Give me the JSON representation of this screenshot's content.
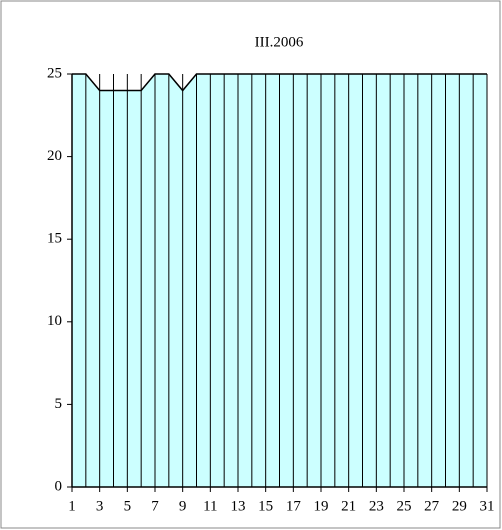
{
  "chart_data": {
    "type": "area",
    "title": "III.2006",
    "x": [
      1,
      2,
      3,
      4,
      5,
      6,
      7,
      8,
      9,
      10,
      11,
      12,
      13,
      14,
      15,
      16,
      17,
      18,
      19,
      20,
      21,
      22,
      23,
      24,
      25,
      26,
      27,
      28,
      29,
      30,
      31
    ],
    "values": [
      25,
      25,
      24,
      24,
      24,
      24,
      25,
      25,
      24,
      25,
      25,
      25,
      25,
      25,
      25,
      25,
      25,
      25,
      25,
      25,
      25,
      25,
      25,
      25,
      25,
      25,
      25,
      25,
      25,
      25,
      25
    ],
    "color": "#ccffff",
    "xlim": [
      1,
      31
    ],
    "xticks": [
      1,
      3,
      5,
      7,
      9,
      11,
      13,
      15,
      17,
      19,
      21,
      23,
      25,
      27,
      29,
      31
    ],
    "ylim": [
      0,
      25
    ],
    "yticks": [
      0,
      5,
      10,
      15,
      20,
      25
    ]
  }
}
